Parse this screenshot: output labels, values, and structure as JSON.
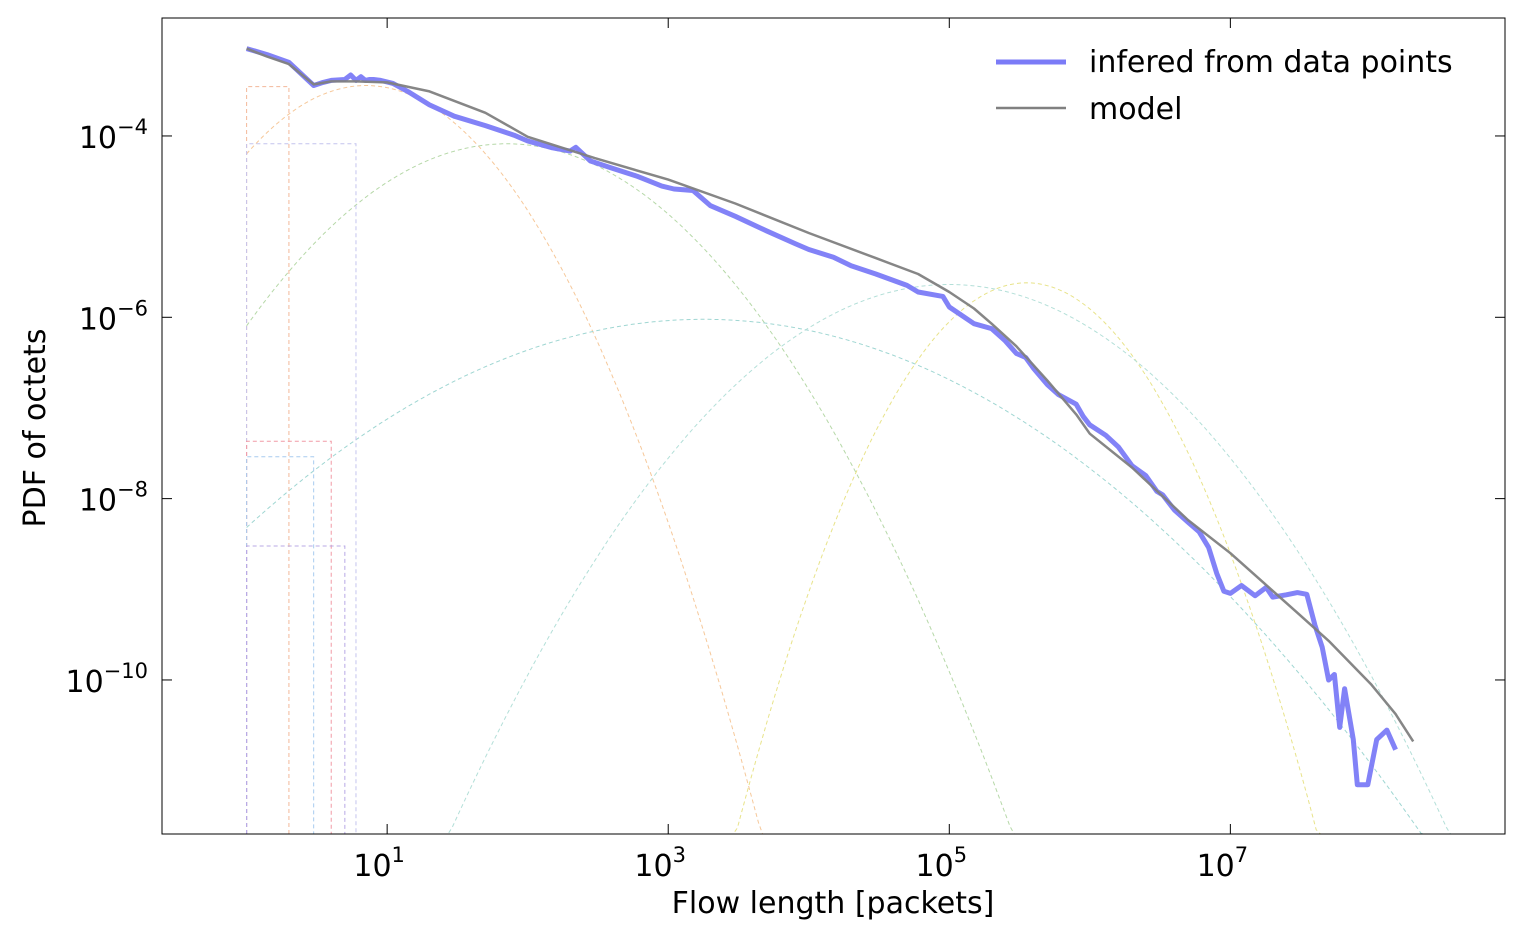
{
  "chart_data": {
    "type": "line",
    "xlabel": "Flow length [packets]",
    "ylabel": "PDF of octets",
    "x_scale": "log",
    "y_scale": "log",
    "xlim": [
      0.25,
      900000000
    ],
    "ylim": [
      2e-12,
      0.002
    ],
    "x_ticks": [
      {
        "value": 10,
        "base": "10",
        "exp": "1"
      },
      {
        "value": 1000,
        "base": "10",
        "exp": "3"
      },
      {
        "value": 100000,
        "base": "10",
        "exp": "5"
      },
      {
        "value": 10000000,
        "base": "10",
        "exp": "7"
      }
    ],
    "y_ticks": [
      {
        "value": 0.0001,
        "base": "10",
        "exp": "−4"
      },
      {
        "value": 1e-06,
        "base": "10",
        "exp": "−6"
      },
      {
        "value": 1e-08,
        "base": "10",
        "exp": "−8"
      },
      {
        "value": 1e-10,
        "base": "10",
        "exp": "−10"
      }
    ],
    "grid": false,
    "legend_position": "top-right",
    "series": [
      {
        "name": "infered from data points",
        "color": "#7b7bf7",
        "x": [
          1.0,
          1.4,
          2.0,
          3.0,
          3.5,
          4.0,
          5.0,
          5.5,
          6.0,
          6.5,
          7.0,
          7.5,
          8.0,
          9.0,
          11,
          14,
          20,
          30,
          50,
          80,
          100,
          150,
          200,
          220,
          280,
          400,
          600,
          900,
          1100,
          1500,
          2000,
          3000,
          5000,
          8000,
          10000,
          15000,
          20000,
          30000,
          50000,
          60000,
          90000,
          100000,
          150000,
          200000,
          250000,
          300000,
          350000,
          400000,
          500000,
          600000,
          800000,
          900000,
          1000000,
          1300000,
          1600000,
          2000000,
          2500000,
          3000000,
          3300000,
          4000000,
          5000000,
          6000000,
          7000000,
          8000000,
          9000000,
          10000000,
          12000000,
          15000000,
          18000000,
          20000000,
          25000000,
          30000000,
          35000000,
          40000000,
          45000000,
          50000000,
          55000000,
          60000000,
          65000000,
          75000000,
          80000000,
          95000000,
          110000000,
          130000000,
          150000000
        ],
        "y": [
          0.00092,
          0.00079,
          0.00065,
          0.00036,
          0.00039,
          0.00041,
          0.00042,
          0.00047,
          0.00041,
          0.00045,
          0.00041,
          0.00042,
          0.00042,
          0.00041,
          0.00038,
          0.00031,
          0.00022,
          0.000165,
          0.00013,
          0.000102,
          8.8e-05,
          7.4e-05,
          6.8e-05,
          7.5e-05,
          5.3e-05,
          4.4e-05,
          3.6e-05,
          2.8e-05,
          2.6e-05,
          2.5e-05,
          1.7e-05,
          1.3e-05,
          9e-06,
          6.5e-06,
          5.6e-06,
          4.6e-06,
          3.7e-06,
          3e-06,
          2.25e-06,
          1.9e-06,
          1.7e-06,
          1.3e-06,
          8.5e-07,
          7.5e-07,
          5.5e-07,
          4e-07,
          3.6e-07,
          2.7e-07,
          1.8e-07,
          1.4e-07,
          1.1e-07,
          8e-08,
          6.5e-08,
          5e-08,
          3.7e-08,
          2.3e-08,
          1.8e-08,
          1.2e-08,
          1.1e-08,
          7.5e-09,
          5.5e-09,
          4.3e-09,
          2.9e-09,
          1.5e-09,
          9.5e-10,
          9e-10,
          1.1e-09,
          8.5e-10,
          1.05e-09,
          8.2e-10,
          8.7e-10,
          9.2e-10,
          8.8e-10,
          4e-10,
          2.3e-10,
          1e-10,
          1.15e-10,
          3e-11,
          8e-11,
          2.2e-11,
          7e-12,
          7e-12,
          2.2e-11,
          2.8e-11,
          1.7e-11
        ],
        "style": "solid-thick"
      },
      {
        "name": "model",
        "color": "#808080",
        "x": [
          1.0,
          1.4,
          2.0,
          3.0,
          4.0,
          6.0,
          10,
          20,
          50,
          100,
          300,
          1000,
          3000,
          10000,
          30000,
          60000,
          100000,
          150000,
          200000,
          300000,
          500000,
          800000,
          1000000,
          2000000,
          5000000,
          10000000,
          30000000,
          50000000,
          100000000,
          150000000,
          200000000
        ],
        "y": [
          0.00092,
          0.00075,
          0.00062,
          0.00037,
          0.0004,
          0.0004,
          0.00039,
          0.00031,
          0.00018,
          9.8e-05,
          5.7e-05,
          3.3e-05,
          1.8e-05,
          8.5e-06,
          4.5e-06,
          3e-06,
          1.9e-06,
          1.25e-06,
          8.5e-07,
          4.8e-07,
          2e-07,
          8.5e-08,
          5.2e-08,
          2.2e-08,
          5.8e-09,
          2.5e-09,
          5.5e-10,
          2.7e-10,
          9e-11,
          4.2e-11,
          2.1e-11
        ],
        "style": "solid-thin"
      }
    ],
    "component_curves": [
      {
        "center_log10": 0.85,
        "sigma_log10": 1.05,
        "peak": 0.00036,
        "color": "#f6c89a"
      },
      {
        "center_log10": 1.85,
        "sigma_log10": 1.4,
        "peak": 8.2e-05,
        "color": "#b6d8a8"
      },
      {
        "center_log10": 3.25,
        "sigma_log10": 2.3,
        "peak": 9.5e-07,
        "color": "#9fd6d2"
      },
      {
        "center_log10": 5.55,
        "sigma_log10": 0.9,
        "peak": 2.4e-06,
        "color": "#e8e38a"
      },
      {
        "center_log10": 5.0,
        "sigma_log10": 1.55,
        "peak": 2.3e-06,
        "color": "#b3dfd8"
      }
    ],
    "component_boxes": [
      {
        "x_end": 2.0,
        "y": 0.00035,
        "color": "#f3b89a"
      },
      {
        "x_end": 6.0,
        "y": 8.2e-05,
        "color": "#c4c4ee"
      },
      {
        "x_end": 4.0,
        "y": 4.3e-08,
        "color": "#f19aa5"
      },
      {
        "x_end": 3.0,
        "y": 2.9e-08,
        "color": "#a8ccef"
      },
      {
        "x_end": 5.0,
        "y": 3e-09,
        "color": "#b8a8e6"
      }
    ]
  }
}
